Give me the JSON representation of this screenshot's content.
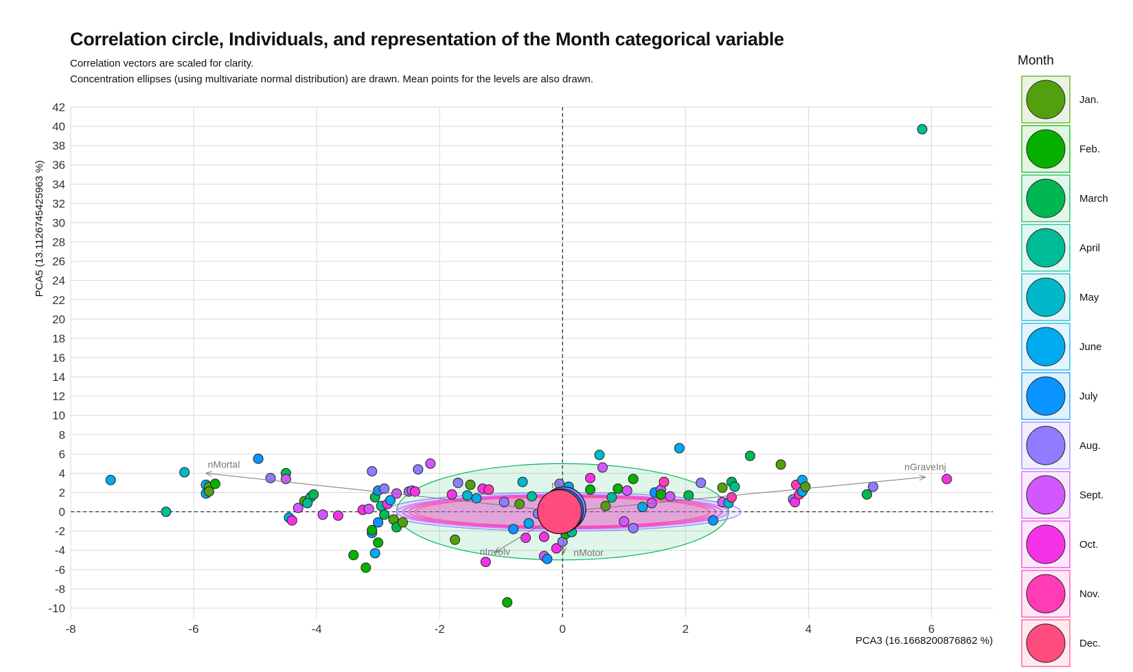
{
  "title": "Correlation circle, Individuals, and representation of the Month categorical variable",
  "subtitle_lines": [
    "Correlation vectors are scaled for clarity.",
    "Concentration ellipses (using multivariate normal distribution) are drawn. Mean points for the levels are also drawn."
  ],
  "chart_data": {
    "type": "scatter",
    "xlabel": "PCA3 (16.1668200876862 %)",
    "ylabel": "PCA5 (13.1126745425963 %)",
    "xlim": [
      -8,
      7
    ],
    "ylim": [
      -11,
      42
    ],
    "xticks": [
      -8,
      -6,
      -4,
      -2,
      0,
      2,
      4,
      6
    ],
    "yticks": [
      -10,
      -8,
      -6,
      -4,
      -2,
      0,
      2,
      4,
      6,
      8,
      10,
      12,
      14,
      16,
      18,
      20,
      22,
      24,
      26,
      28,
      30,
      32,
      34,
      36,
      38,
      40,
      42
    ],
    "grid": true,
    "reference_lines": {
      "x": 0,
      "y": 0,
      "style": "dashed"
    },
    "legend": {
      "title": "Month",
      "position": "right",
      "levels": [
        {
          "name": "Jan.",
          "color": "#53A00E"
        },
        {
          "name": "Feb.",
          "color": "#06B000"
        },
        {
          "name": "March",
          "color": "#00B752"
        },
        {
          "name": "April",
          "color": "#00BC96"
        },
        {
          "name": "May",
          "color": "#00B8C8"
        },
        {
          "name": "June",
          "color": "#00AAEF"
        },
        {
          "name": "July",
          "color": "#0A94FF"
        },
        {
          "name": "Aug.",
          "color": "#8F7CFF"
        },
        {
          "name": "Sept.",
          "color": "#D157FF"
        },
        {
          "name": "Oct.",
          "color": "#F532E6"
        },
        {
          "name": "Nov.",
          "color": "#FF3BB5"
        },
        {
          "name": "Dec.",
          "color": "#FF4B7E"
        }
      ]
    },
    "vectors": [
      {
        "label": "nMortal",
        "x": -5.8,
        "y": 4.0
      },
      {
        "label": "nGraveInj",
        "x": 5.9,
        "y": 3.6
      },
      {
        "label": "nMotor",
        "x": 0.02,
        "y": -4.3
      },
      {
        "label": "nInvolv",
        "x": -1.1,
        "y": -4.2
      },
      {
        "label": "nM",
        "x": 0.15,
        "y": 2.6
      }
    ],
    "ellipses": [
      {
        "month": "March",
        "cx": 0.0,
        "cy": 0.0,
        "rx": 2.7,
        "ry": 5.0
      },
      {
        "month": "Aug.",
        "cx": 0.0,
        "cy": 0.0,
        "rx": 2.9,
        "ry": 2.0
      },
      {
        "month": "Sept.",
        "cx": 0.0,
        "cy": 0.0,
        "rx": 2.7,
        "ry": 1.8
      },
      {
        "month": "Oct.",
        "cx": 0.0,
        "cy": 0.0,
        "rx": 2.6,
        "ry": 1.7
      },
      {
        "month": "Nov.",
        "cx": 0.0,
        "cy": 0.0,
        "rx": 2.5,
        "ry": 1.6
      },
      {
        "month": "Dec.",
        "cx": 0.0,
        "cy": 0.0,
        "rx": 2.4,
        "ry": 1.5
      }
    ],
    "mean_points": [
      {
        "month": "Aug.",
        "x": 0.02,
        "y": 0.3
      },
      {
        "month": "July",
        "x": -0.02,
        "y": 0.1
      },
      {
        "month": "Dec.",
        "x": -0.05,
        "y": 0.0
      }
    ],
    "points": [
      {
        "x": 5.85,
        "y": 39.7,
        "m": "April"
      },
      {
        "x": -7.35,
        "y": 3.3,
        "m": "June"
      },
      {
        "x": -6.15,
        "y": 4.1,
        "m": "May"
      },
      {
        "x": -6.45,
        "y": 0.0,
        "m": "April"
      },
      {
        "x": -5.8,
        "y": 2.8,
        "m": "June"
      },
      {
        "x": -5.8,
        "y": 1.9,
        "m": "June"
      },
      {
        "x": -5.75,
        "y": 2.6,
        "m": "Jan."
      },
      {
        "x": -5.75,
        "y": 2.1,
        "m": "Jan."
      },
      {
        "x": -5.65,
        "y": 2.9,
        "m": "Feb."
      },
      {
        "x": -4.95,
        "y": 5.5,
        "m": "July"
      },
      {
        "x": -4.75,
        "y": 3.5,
        "m": "Aug."
      },
      {
        "x": -4.5,
        "y": 4.0,
        "m": "March"
      },
      {
        "x": -4.5,
        "y": 3.4,
        "m": "Sept."
      },
      {
        "x": -4.45,
        "y": -0.6,
        "m": "June"
      },
      {
        "x": -4.4,
        "y": -0.9,
        "m": "Oct."
      },
      {
        "x": -4.3,
        "y": 0.4,
        "m": "Sept."
      },
      {
        "x": -4.2,
        "y": 1.1,
        "m": "Jan."
      },
      {
        "x": -4.1,
        "y": 1.5,
        "m": "April"
      },
      {
        "x": -4.05,
        "y": 1.8,
        "m": "March"
      },
      {
        "x": -4.15,
        "y": 0.9,
        "m": "April"
      },
      {
        "x": -3.9,
        "y": -0.3,
        "m": "Sept."
      },
      {
        "x": -3.65,
        "y": -0.4,
        "m": "Oct."
      },
      {
        "x": -3.4,
        "y": -4.5,
        "m": "Feb."
      },
      {
        "x": -3.2,
        "y": -5.8,
        "m": "Feb."
      },
      {
        "x": -3.1,
        "y": 4.2,
        "m": "Aug."
      },
      {
        "x": -3.1,
        "y": -2.2,
        "m": "July"
      },
      {
        "x": -3.1,
        "y": -1.9,
        "m": "Feb."
      },
      {
        "x": -3.05,
        "y": 1.5,
        "m": "March"
      },
      {
        "x": -3.05,
        "y": -4.3,
        "m": "June"
      },
      {
        "x": -3.0,
        "y": 2.2,
        "m": "July"
      },
      {
        "x": -3.0,
        "y": -1.1,
        "m": "July"
      },
      {
        "x": -3.0,
        "y": -3.2,
        "m": "Feb."
      },
      {
        "x": -2.95,
        "y": 0.6,
        "m": "April"
      },
      {
        "x": -2.9,
        "y": 2.4,
        "m": "Aug."
      },
      {
        "x": -2.9,
        "y": -0.3,
        "m": "March"
      },
      {
        "x": -2.85,
        "y": 0.8,
        "m": "Oct."
      },
      {
        "x": -2.8,
        "y": 1.2,
        "m": "June"
      },
      {
        "x": -2.75,
        "y": -0.8,
        "m": "Jan."
      },
      {
        "x": -2.7,
        "y": -1.6,
        "m": "March"
      },
      {
        "x": -2.7,
        "y": 1.9,
        "m": "Sept."
      },
      {
        "x": -2.6,
        "y": -1.1,
        "m": "Jan."
      },
      {
        "x": -2.5,
        "y": 2.1,
        "m": "Aug."
      },
      {
        "x": -2.45,
        "y": 2.2,
        "m": "Sept."
      },
      {
        "x": -2.4,
        "y": 2.1,
        "m": "Oct."
      },
      {
        "x": -2.35,
        "y": 4.4,
        "m": "Aug."
      },
      {
        "x": -2.15,
        "y": 5.0,
        "m": "Sept."
      },
      {
        "x": -3.25,
        "y": 0.2,
        "m": "Oct."
      },
      {
        "x": -3.15,
        "y": 0.3,
        "m": "Sept."
      },
      {
        "x": -1.8,
        "y": 1.8,
        "m": "Oct."
      },
      {
        "x": -1.75,
        "y": -2.9,
        "m": "Jan."
      },
      {
        "x": -1.7,
        "y": 3.0,
        "m": "Aug."
      },
      {
        "x": -1.55,
        "y": 1.7,
        "m": "May"
      },
      {
        "x": -1.5,
        "y": 2.8,
        "m": "Jan."
      },
      {
        "x": -1.4,
        "y": 1.4,
        "m": "June"
      },
      {
        "x": -1.3,
        "y": 2.4,
        "m": "Oct."
      },
      {
        "x": -1.25,
        "y": -5.2,
        "m": "Oct."
      },
      {
        "x": -1.2,
        "y": 2.3,
        "m": "Nov."
      },
      {
        "x": -0.95,
        "y": 1.0,
        "m": "Aug."
      },
      {
        "x": -0.9,
        "y": -9.4,
        "m": "Feb."
      },
      {
        "x": -0.8,
        "y": -1.8,
        "m": "July"
      },
      {
        "x": -0.7,
        "y": 0.8,
        "m": "Jan."
      },
      {
        "x": -0.65,
        "y": 3.1,
        "m": "May"
      },
      {
        "x": -0.6,
        "y": -2.7,
        "m": "Oct."
      },
      {
        "x": -0.55,
        "y": -1.2,
        "m": "June"
      },
      {
        "x": -0.5,
        "y": 1.6,
        "m": "April"
      },
      {
        "x": -0.4,
        "y": -0.2,
        "m": "Aug."
      },
      {
        "x": -0.3,
        "y": -4.6,
        "m": "Sept."
      },
      {
        "x": -0.25,
        "y": -4.9,
        "m": "July"
      },
      {
        "x": -0.3,
        "y": -2.6,
        "m": "Oct."
      },
      {
        "x": -0.1,
        "y": -3.8,
        "m": "Oct."
      },
      {
        "x": -0.05,
        "y": 2.9,
        "m": "Aug."
      },
      {
        "x": 0.0,
        "y": -3.1,
        "m": "Aug."
      },
      {
        "x": 0.05,
        "y": -2.3,
        "m": "Feb."
      },
      {
        "x": 0.1,
        "y": 2.6,
        "m": "June"
      },
      {
        "x": 0.15,
        "y": -2.1,
        "m": "April"
      },
      {
        "x": 0.45,
        "y": 3.5,
        "m": "Oct."
      },
      {
        "x": 0.6,
        "y": 5.9,
        "m": "May"
      },
      {
        "x": 0.65,
        "y": 4.6,
        "m": "Sept."
      },
      {
        "x": 0.45,
        "y": 2.3,
        "m": "Feb."
      },
      {
        "x": 0.7,
        "y": 0.6,
        "m": "Jan."
      },
      {
        "x": 0.8,
        "y": 1.5,
        "m": "April"
      },
      {
        "x": 0.9,
        "y": 2.4,
        "m": "Feb."
      },
      {
        "x": 1.05,
        "y": 2.2,
        "m": "Sept."
      },
      {
        "x": 1.15,
        "y": 3.4,
        "m": "Feb."
      },
      {
        "x": 1.0,
        "y": -1.0,
        "m": "Sept."
      },
      {
        "x": 1.15,
        "y": -1.7,
        "m": "Aug."
      },
      {
        "x": 1.3,
        "y": 0.5,
        "m": "June"
      },
      {
        "x": 1.45,
        "y": 0.9,
        "m": "Sept."
      },
      {
        "x": 1.5,
        "y": 2.0,
        "m": "July"
      },
      {
        "x": 1.6,
        "y": 2.3,
        "m": "Sept."
      },
      {
        "x": 1.65,
        "y": 3.1,
        "m": "Nov."
      },
      {
        "x": 1.6,
        "y": 1.8,
        "m": "Feb."
      },
      {
        "x": 1.75,
        "y": 1.6,
        "m": "Sept."
      },
      {
        "x": 1.9,
        "y": 6.6,
        "m": "June"
      },
      {
        "x": 2.05,
        "y": 1.7,
        "m": "March"
      },
      {
        "x": 2.25,
        "y": 3.0,
        "m": "Aug."
      },
      {
        "x": 2.45,
        "y": -0.9,
        "m": "July"
      },
      {
        "x": 2.6,
        "y": 2.5,
        "m": "Jan."
      },
      {
        "x": 2.6,
        "y": 1.0,
        "m": "Sept."
      },
      {
        "x": 2.7,
        "y": 0.9,
        "m": "May"
      },
      {
        "x": 2.75,
        "y": 1.5,
        "m": "Nov."
      },
      {
        "x": 2.75,
        "y": 3.1,
        "m": "March"
      },
      {
        "x": 2.8,
        "y": 2.6,
        "m": "April"
      },
      {
        "x": 3.05,
        "y": 5.8,
        "m": "March"
      },
      {
        "x": 3.55,
        "y": 4.9,
        "m": "Jan."
      },
      {
        "x": 3.75,
        "y": 1.3,
        "m": "Aug."
      },
      {
        "x": 3.8,
        "y": 2.8,
        "m": "Nov."
      },
      {
        "x": 3.78,
        "y": 1.0,
        "m": "Oct."
      },
      {
        "x": 3.85,
        "y": 1.8,
        "m": "Nov."
      },
      {
        "x": 3.9,
        "y": 2.1,
        "m": "June"
      },
      {
        "x": 3.9,
        "y": 3.3,
        "m": "June"
      },
      {
        "x": 3.95,
        "y": 2.6,
        "m": "Jan."
      },
      {
        "x": 4.95,
        "y": 1.8,
        "m": "March"
      },
      {
        "x": 5.05,
        "y": 2.6,
        "m": "Aug."
      },
      {
        "x": 6.25,
        "y": 3.4,
        "m": "Oct."
      }
    ]
  }
}
